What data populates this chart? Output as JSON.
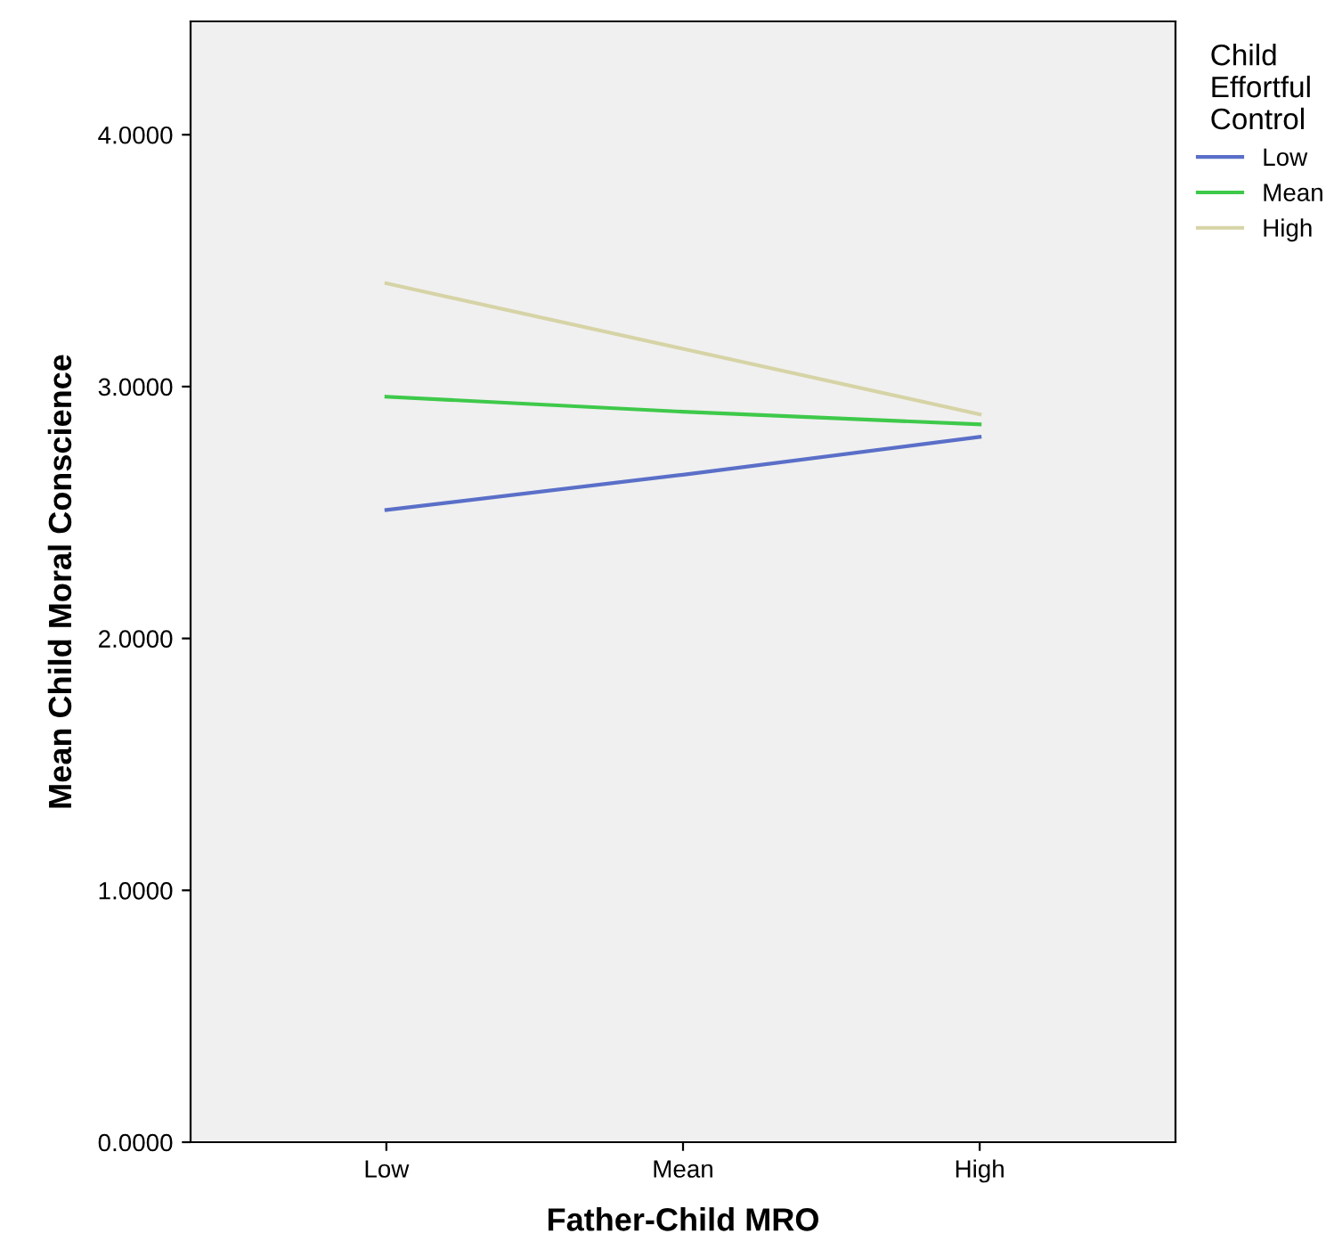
{
  "chart_data": {
    "type": "line",
    "xlabel": "Father-Child MRO",
    "ylabel": "Mean Child Moral Conscience",
    "legend_title": "Child\nEffortful\nControl",
    "categories": [
      "Low",
      "Mean",
      "High"
    ],
    "series": [
      {
        "name": "Low",
        "color": "#5a6fc8",
        "values": [
          2.51,
          2.65,
          2.8
        ]
      },
      {
        "name": "Mean",
        "color": "#3ec94a",
        "values": [
          2.96,
          2.9,
          2.85
        ]
      },
      {
        "name": "High",
        "color": "#d6d3a6",
        "values": [
          3.41,
          3.15,
          2.89
        ]
      }
    ],
    "ylim": [
      0,
      4.45
    ],
    "yticks": [
      {
        "value": 0,
        "label": "0.0000"
      },
      {
        "value": 1,
        "label": "1.0000"
      },
      {
        "value": 2,
        "label": "2.0000"
      },
      {
        "value": 3,
        "label": "3.0000"
      },
      {
        "value": 4,
        "label": "4.0000"
      }
    ],
    "grid": false,
    "legend": "top right",
    "marker": "none",
    "line_style": "solid"
  }
}
